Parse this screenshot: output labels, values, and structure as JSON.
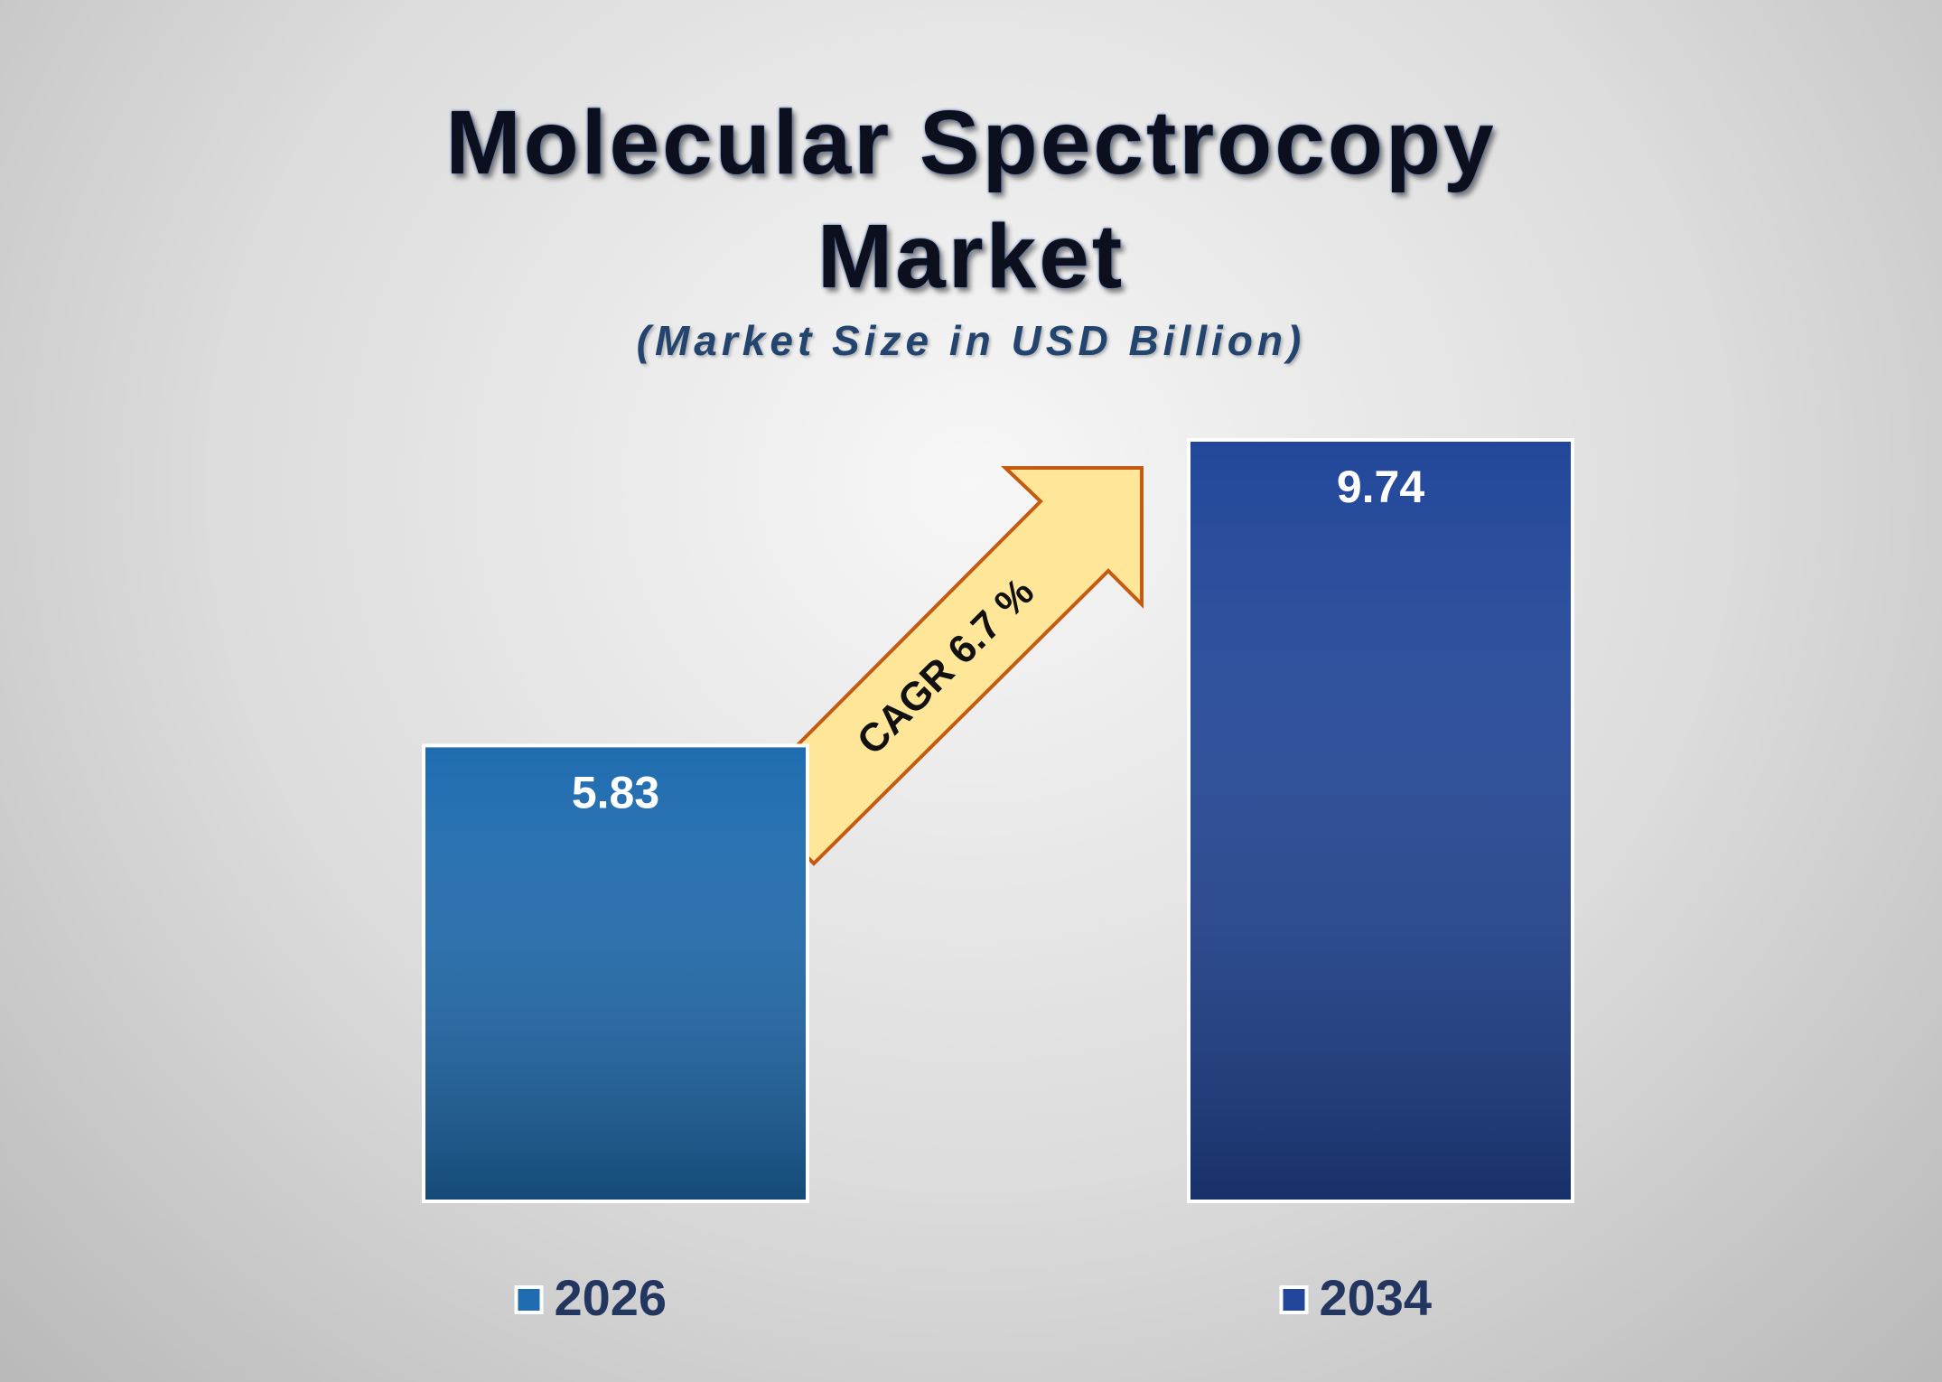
{
  "chart_data": {
    "type": "bar",
    "title": "Molecular Spectrocopy Market",
    "subtitle": "(Market Size in USD Billion)",
    "annotation": "CAGR 6.7 %",
    "series": [
      {
        "name": "2026",
        "color": "#1f6cb0",
        "values": [
          5.83
        ]
      },
      {
        "name": "2034",
        "color": "#22479a",
        "values": [
          9.74
        ]
      }
    ]
  }
}
